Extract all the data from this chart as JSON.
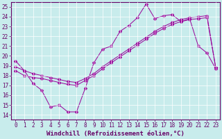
{
  "xlabel": "Windchill (Refroidissement éolien,°C)",
  "bg_color": "#c8ecec",
  "line_color": "#990099",
  "grid_color": "#ffffff",
  "xlim": [
    -0.5,
    23.5
  ],
  "ylim": [
    13.5,
    25.5
  ],
  "xticks": [
    0,
    1,
    2,
    3,
    4,
    5,
    6,
    7,
    8,
    9,
    10,
    11,
    12,
    13,
    14,
    15,
    16,
    17,
    18,
    19,
    20,
    21,
    22,
    23
  ],
  "yticks": [
    14,
    15,
    16,
    17,
    18,
    19,
    20,
    21,
    22,
    23,
    24,
    25
  ],
  "line1_y": [
    19.5,
    18.5,
    17.2,
    16.5,
    14.8,
    15.0,
    14.3,
    14.3,
    16.7,
    19.3,
    20.7,
    21.0,
    22.5,
    23.1,
    23.9,
    25.3,
    23.8,
    24.1,
    24.2,
    23.5,
    23.8,
    21.0,
    20.3,
    18.7
  ],
  "line2_y": [
    18.5,
    18.0,
    17.8,
    17.7,
    17.5,
    17.3,
    17.1,
    17.0,
    17.5,
    18.0,
    18.7,
    19.3,
    19.9,
    20.5,
    21.1,
    21.7,
    22.3,
    22.8,
    23.2,
    23.5,
    23.7,
    23.8,
    23.9,
    18.8
  ],
  "line3_y": [
    18.9,
    18.5,
    18.2,
    18.0,
    17.8,
    17.6,
    17.4,
    17.3,
    17.7,
    18.2,
    18.9,
    19.5,
    20.1,
    20.7,
    21.3,
    21.9,
    22.5,
    23.0,
    23.4,
    23.7,
    23.9,
    24.0,
    24.1,
    18.8
  ],
  "font_family": "monospace",
  "tick_fontsize": 5.5,
  "xlabel_fontsize": 6.5,
  "marker_size": 2.5,
  "linewidth": 0.7
}
